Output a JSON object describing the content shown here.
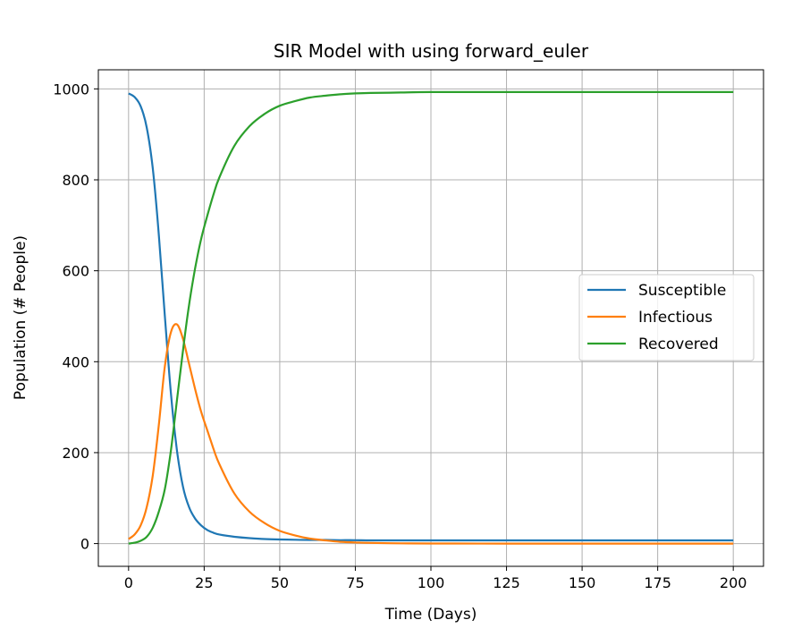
{
  "chart_data": {
    "type": "line",
    "title": "SIR Model with using forward_euler",
    "xlabel": "Time (Days)",
    "ylabel": "Population (# People)",
    "xlim": [
      -10,
      210
    ],
    "ylim": [
      -50,
      1042
    ],
    "xticks": [
      0,
      25,
      50,
      75,
      100,
      125,
      150,
      175,
      200
    ],
    "yticks": [
      0,
      200,
      400,
      600,
      800,
      1000
    ],
    "grid": true,
    "legend_position": "center-right",
    "x": [
      0,
      2,
      4,
      6,
      8,
      10,
      12,
      14,
      16,
      18,
      20,
      22,
      24,
      26,
      28,
      30,
      35,
      40,
      45,
      50,
      55,
      60,
      65,
      70,
      75,
      80,
      90,
      100,
      125,
      150,
      175,
      200
    ],
    "series": [
      {
        "name": "Susceptible",
        "color": "#1f77b4",
        "values": [
          990,
          982,
          962,
          915,
          825,
          680,
          500,
          330,
          205,
          125,
          80,
          55,
          40,
          30,
          24,
          20,
          15,
          12,
          10,
          9,
          8.5,
          8,
          8,
          7.5,
          7.5,
          7,
          7,
          7,
          7,
          7,
          7,
          7
        ]
      },
      {
        "name": "Infectious",
        "color": "#ff7f0e",
        "values": [
          10,
          20,
          40,
          80,
          150,
          260,
          390,
          465,
          482,
          450,
          395,
          340,
          290,
          250,
          210,
          175,
          110,
          70,
          45,
          28,
          18,
          11,
          7,
          4,
          2.5,
          1.5,
          0.5,
          0.2,
          0,
          0,
          0,
          0
        ]
      },
      {
        "name": "Recovered",
        "color": "#2ca02c",
        "values": [
          0,
          2,
          6,
          15,
          35,
          70,
          120,
          205,
          315,
          425,
          525,
          605,
          670,
          720,
          766,
          805,
          875,
          918,
          945,
          963,
          973,
          981,
          985,
          988,
          990,
          991,
          992,
          993,
          993,
          993,
          993,
          993
        ]
      }
    ]
  }
}
